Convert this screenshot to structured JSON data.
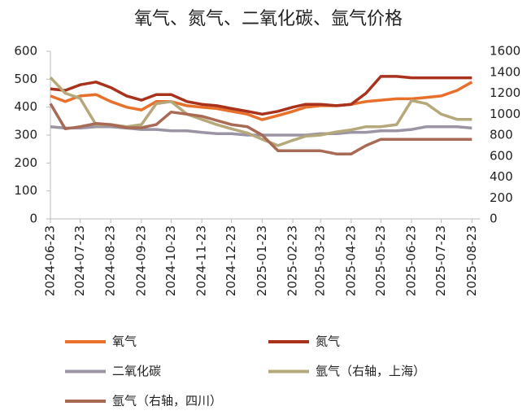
{
  "chart_data": {
    "type": "line",
    "title": "氧气、氮气、二氧化碳、氩气价格",
    "x": [
      "2024-06-23",
      "2024-07-08",
      "2024-07-23",
      "2024-08-08",
      "2024-08-23",
      "2024-09-08",
      "2024-09-23",
      "2024-10-08",
      "2024-10-23",
      "2024-11-08",
      "2024-11-23",
      "2024-12-08",
      "2024-12-23",
      "2025-01-08",
      "2025-01-23",
      "2025-02-08",
      "2025-02-23",
      "2025-03-08",
      "2025-03-23",
      "2025-04-08",
      "2025-04-23",
      "2025-05-08",
      "2025-05-23",
      "2025-06-08",
      "2025-06-23",
      "2025-07-08",
      "2025-07-23",
      "2025-08-08",
      "2025-08-23"
    ],
    "xlim": [
      "2024-06-23",
      "2025-08-31"
    ],
    "xticks": [
      "2024-06-23",
      "2024-07-23",
      "2024-08-23",
      "2024-09-23",
      "2024-10-23",
      "2024-11-23",
      "2024-12-23",
      "2025-01-23",
      "2025-02-23",
      "2025-03-23",
      "2025-04-23",
      "2025-05-23",
      "2025-06-23",
      "2025-07-23",
      "2025-08-23"
    ],
    "ylim": [
      0,
      600
    ],
    "yticks": [
      0,
      100,
      200,
      300,
      400,
      500,
      600
    ],
    "y2lim": [
      0,
      1600
    ],
    "y2ticks": [
      0,
      200,
      400,
      600,
      800,
      1000,
      1200,
      1400,
      1600
    ],
    "series": [
      {
        "name": "氧气",
        "color": "#e8702a",
        "values": [
          440,
          420,
          440,
          445,
          420,
          400,
          390,
          420,
          420,
          405,
          400,
          395,
          385,
          375,
          355,
          370,
          385,
          400,
          405,
          405,
          410,
          420,
          425,
          430,
          430,
          435,
          440,
          460,
          490
        ]
      },
      {
        "name": "氮气",
        "color": "#a8321c",
        "values": [
          465,
          460,
          480,
          490,
          470,
          440,
          425,
          445,
          445,
          420,
          410,
          405,
          395,
          385,
          375,
          385,
          400,
          410,
          410,
          405,
          410,
          450,
          510,
          510,
          505,
          505,
          505,
          505,
          505
        ]
      },
      {
        "name": "二氧化碳",
        "color": "#9a94a4",
        "values": [
          330,
          325,
          325,
          330,
          330,
          325,
          320,
          320,
          315,
          315,
          310,
          305,
          305,
          300,
          300,
          300,
          300,
          300,
          305,
          305,
          310,
          310,
          315,
          315,
          320,
          330,
          330,
          330,
          325
        ]
      },
      {
        "name": "氩气（右轴，上海）",
        "color": "#b5a87a",
        "axis": "y2",
        "values": [
          1350,
          1200,
          1150,
          900,
          900,
          880,
          900,
          1100,
          1120,
          1000,
          950,
          900,
          860,
          820,
          760,
          700,
          750,
          790,
          800,
          830,
          850,
          880,
          880,
          900,
          1130,
          1100,
          1000,
          950,
          950
        ]
      },
      {
        "name": "氩气（右轴，四川）",
        "color": "#a86a55",
        "axis": "y2",
        "values": [
          1100,
          860,
          880,
          910,
          900,
          870,
          870,
          900,
          1020,
          1000,
          980,
          940,
          900,
          880,
          800,
          650,
          650,
          650,
          650,
          620,
          620,
          700,
          760,
          760,
          760,
          760,
          760,
          760,
          760
        ]
      }
    ]
  }
}
